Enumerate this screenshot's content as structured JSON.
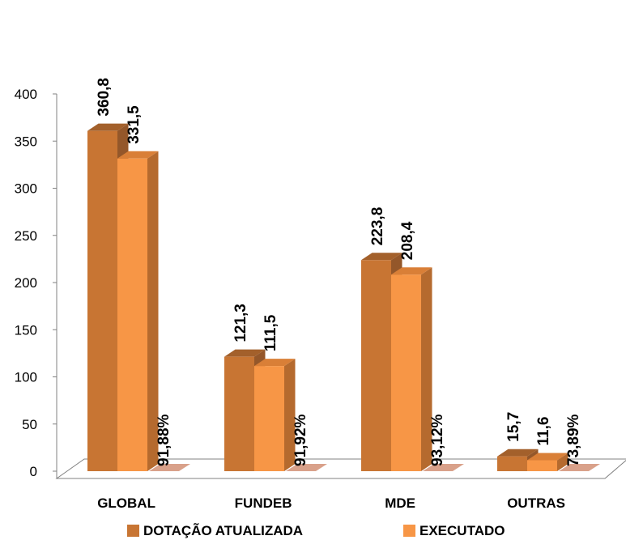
{
  "colors": {
    "dotacao_front": "#C87533",
    "dotacao_side": "#94572A",
    "dotacao_top": "#A3602B",
    "executado_front": "#F79646",
    "executado_side": "#B56A2E",
    "executado_top": "#D97F37",
    "percent_floor": "#D9A18A",
    "axis": "#808080",
    "text": "#000000"
  },
  "chart_data": {
    "type": "bar",
    "title": "",
    "xlabel": "",
    "ylabel": "",
    "ylim": [
      0,
      400
    ],
    "yticks": [
      0,
      50,
      100,
      150,
      200,
      250,
      300,
      350,
      400
    ],
    "categories": [
      "GLOBAL",
      "FUNDEB",
      "MDE",
      "OUTRAS"
    ],
    "series": [
      {
        "name": "DOTAÇÃO ATUALIZADA",
        "values": [
          360.8,
          121.3,
          223.8,
          15.7
        ],
        "labels": [
          "360,8",
          "121,3",
          "223,8",
          "15,7"
        ]
      },
      {
        "name": "EXECUTADO",
        "values": [
          331.5,
          111.5,
          208.4,
          11.6
        ],
        "labels": [
          "331,5",
          "111,5",
          "208,4",
          "11,6"
        ]
      }
    ],
    "percent_labels": [
      "91,88%",
      "91,92%",
      "93,12%",
      "73,89%"
    ],
    "legend_position": "bottom",
    "style": "3d-clustered-column"
  }
}
